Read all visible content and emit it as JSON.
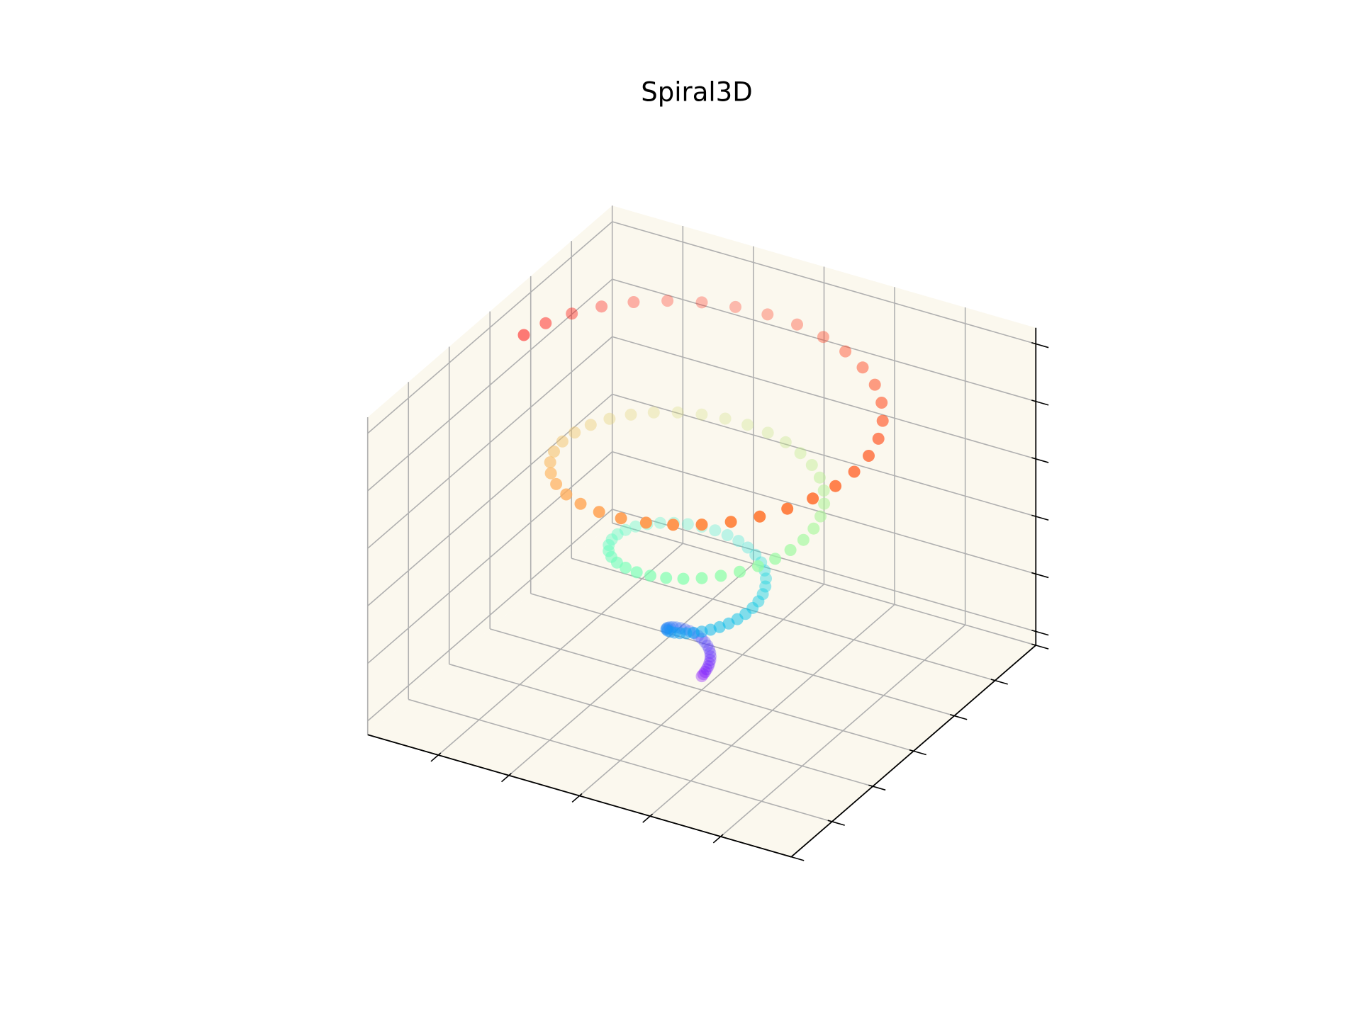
{
  "chart_data": {
    "type": "scatter3d",
    "title": "Spiral3D",
    "colormap": "rainbow",
    "pane_color": "#fbf8ee",
    "grid": true,
    "xlim": [
      -15,
      15
    ],
    "xticks": [
      -10,
      -5,
      0,
      5,
      10
    ],
    "ylim": [
      -15,
      15
    ],
    "yticks": [
      -15,
      -10,
      -5,
      0,
      5,
      10,
      15
    ],
    "zlim": [
      -0.6,
      13.2
    ],
    "zticks": [
      0,
      2.5,
      5,
      7.5,
      10,
      12.5
    ],
    "x": [
      0,
      0.1,
      0.19,
      0.26,
      0.31,
      0.32,
      0.3,
      0.24,
      0.14,
      0,
      -0.17,
      -0.38,
      -0.6,
      -0.84,
      -1.07,
      -1.3,
      -1.5,
      -1.67,
      -1.8,
      -1.87,
      -1.88,
      -1.82,
      -1.69,
      -1.48,
      -1.2,
      -0.86,
      -0.45,
      0,
      0.49,
      0.99,
      1.5,
      1.99,
      2.45,
      2.86,
      3.19,
      3.45,
      3.6,
      3.64,
      3.57,
      3.38,
      3.06,
      2.64,
      2.1,
      1.47,
      0.76,
      0,
      -0.8,
      -1.61,
      -2.4,
      -3.15,
      -3.83,
      -4.42,
      -4.89,
      -5.22,
      -5.4,
      -5.42,
      -5.26,
      -4.94,
      -4.44,
      -3.79,
      -3.0,
      -2.09,
      -1.08,
      0,
      1.11,
      2.22,
      3.3,
      4.31,
      5.21,
      5.98,
      6.58,
      6.99,
      7.2,
      7.19,
      6.95,
      6.5,
      5.82,
      4.95,
      3.9,
      2.7,
      1.39,
      0,
      -1.42,
      -2.84,
      -4.2,
      -5.46,
      -6.59,
      -7.53,
      -8.27,
      -8.76,
      -9,
      -8.96,
      -8.65,
      -8.05,
      -7.2,
      -6.11,
      -4.8,
      -3.32,
      -1.7,
      0,
      1.74,
      3.45,
      5.1,
      6.62,
      7.97,
      9.09,
      9.96,
      10.54,
      10.8,
      10.73,
      10.34,
      9.61,
      8.58,
      7.26,
      5.7,
      3.93,
      2.01,
      0,
      -2.05,
      -4.07,
      -6,
      -7.78,
      -9.35,
      -10.65,
      -11.65,
      -12.31,
      -12.6
    ],
    "y": [
      0,
      0.02,
      0.07,
      0.15,
      0.26,
      0.38,
      0.52,
      0.66,
      0.79,
      0.9,
      0.98,
      1.03,
      1.04,
      1.0,
      0.9,
      0.75,
      0.55,
      0.3,
      0,
      -0.33,
      -0.68,
      -1.05,
      -1.41,
      -1.76,
      -2.08,
      -2.35,
      -2.56,
      -2.7,
      -2.76,
      -2.73,
      -2.6,
      -2.37,
      -2.06,
      -1.65,
      -1.16,
      -0.61,
      0,
      0.64,
      1.3,
      1.95,
      2.57,
      3.14,
      3.64,
      4.04,
      4.33,
      4.5,
      4.53,
      4.42,
      4.16,
      3.75,
      3.21,
      2.55,
      1.78,
      0.92,
      0,
      -0.95,
      -1.92,
      -2.85,
      -3.73,
      -4.52,
      -5.2,
      -5.73,
      -6.11,
      -6.3,
      -6.3,
      -6.11,
      -5.72,
      -5.13,
      -4.37,
      -3.45,
      -2.39,
      -1.23,
      0,
      1.27,
      2.53,
      3.75,
      4.89,
      5.9,
      6.75,
      7.42,
      7.88,
      8.1,
      8.08,
      7.8,
      7.27,
      6.51,
      5.53,
      4.35,
      3.01,
      1.55,
      0,
      -1.58,
      -3.15,
      -4.65,
      -6.04,
      -7.28,
      -8.31,
      -9.12,
      -9.65,
      -9.9,
      -9.85,
      -9.49,
      -8.83,
      -7.89,
      -6.69,
      -5.25,
      -3.63,
      -1.86,
      0,
      1.89,
      3.76,
      5.55,
      7.2,
      8.66,
      9.87,
      10.81,
      11.42,
      11.7,
      11.62,
      11.18,
      10.39,
      9.27,
      7.84,
      6.15,
      4.24,
      2.17,
      0
    ],
    "z": [
      0,
      0.1,
      0.2,
      0.3,
      0.4,
      0.5,
      0.6,
      0.7,
      0.8,
      0.9,
      1.0,
      1.1,
      1.2,
      1.3,
      1.4,
      1.5,
      1.6,
      1.7,
      1.8,
      1.9,
      2.0,
      2.1,
      2.2,
      2.3,
      2.4,
      2.5,
      2.6,
      2.7,
      2.8,
      2.9,
      3.0,
      3.1,
      3.2,
      3.3,
      3.4,
      3.5,
      3.6,
      3.7,
      3.8,
      3.9,
      4.0,
      4.1,
      4.2,
      4.3,
      4.4,
      4.5,
      4.6,
      4.7,
      4.8,
      4.9,
      5.0,
      5.1,
      5.2,
      5.3,
      5.4,
      5.5,
      5.6,
      5.7,
      5.8,
      5.9,
      6.0,
      6.1,
      6.2,
      6.3,
      6.4,
      6.5,
      6.6,
      6.7,
      6.8,
      6.9,
      7.0,
      7.1,
      7.2,
      7.3,
      7.4,
      7.5,
      7.6,
      7.7,
      7.8,
      7.9,
      8.0,
      8.1,
      8.2,
      8.3,
      8.4,
      8.5,
      8.6,
      8.7,
      8.8,
      8.9,
      9.0,
      9.1,
      9.2,
      9.3,
      9.4,
      9.5,
      9.6,
      9.7,
      9.8,
      9.9,
      10.0,
      10.1,
      10.2,
      10.3,
      10.4,
      10.5,
      10.6,
      10.7,
      10.8,
      10.9,
      11.0,
      11.1,
      11.2,
      11.3,
      11.4,
      11.5,
      11.6,
      11.7,
      11.8,
      11.9,
      12.0,
      12.1,
      12.2,
      12.3,
      12.4,
      12.5,
      12.6
    ]
  }
}
